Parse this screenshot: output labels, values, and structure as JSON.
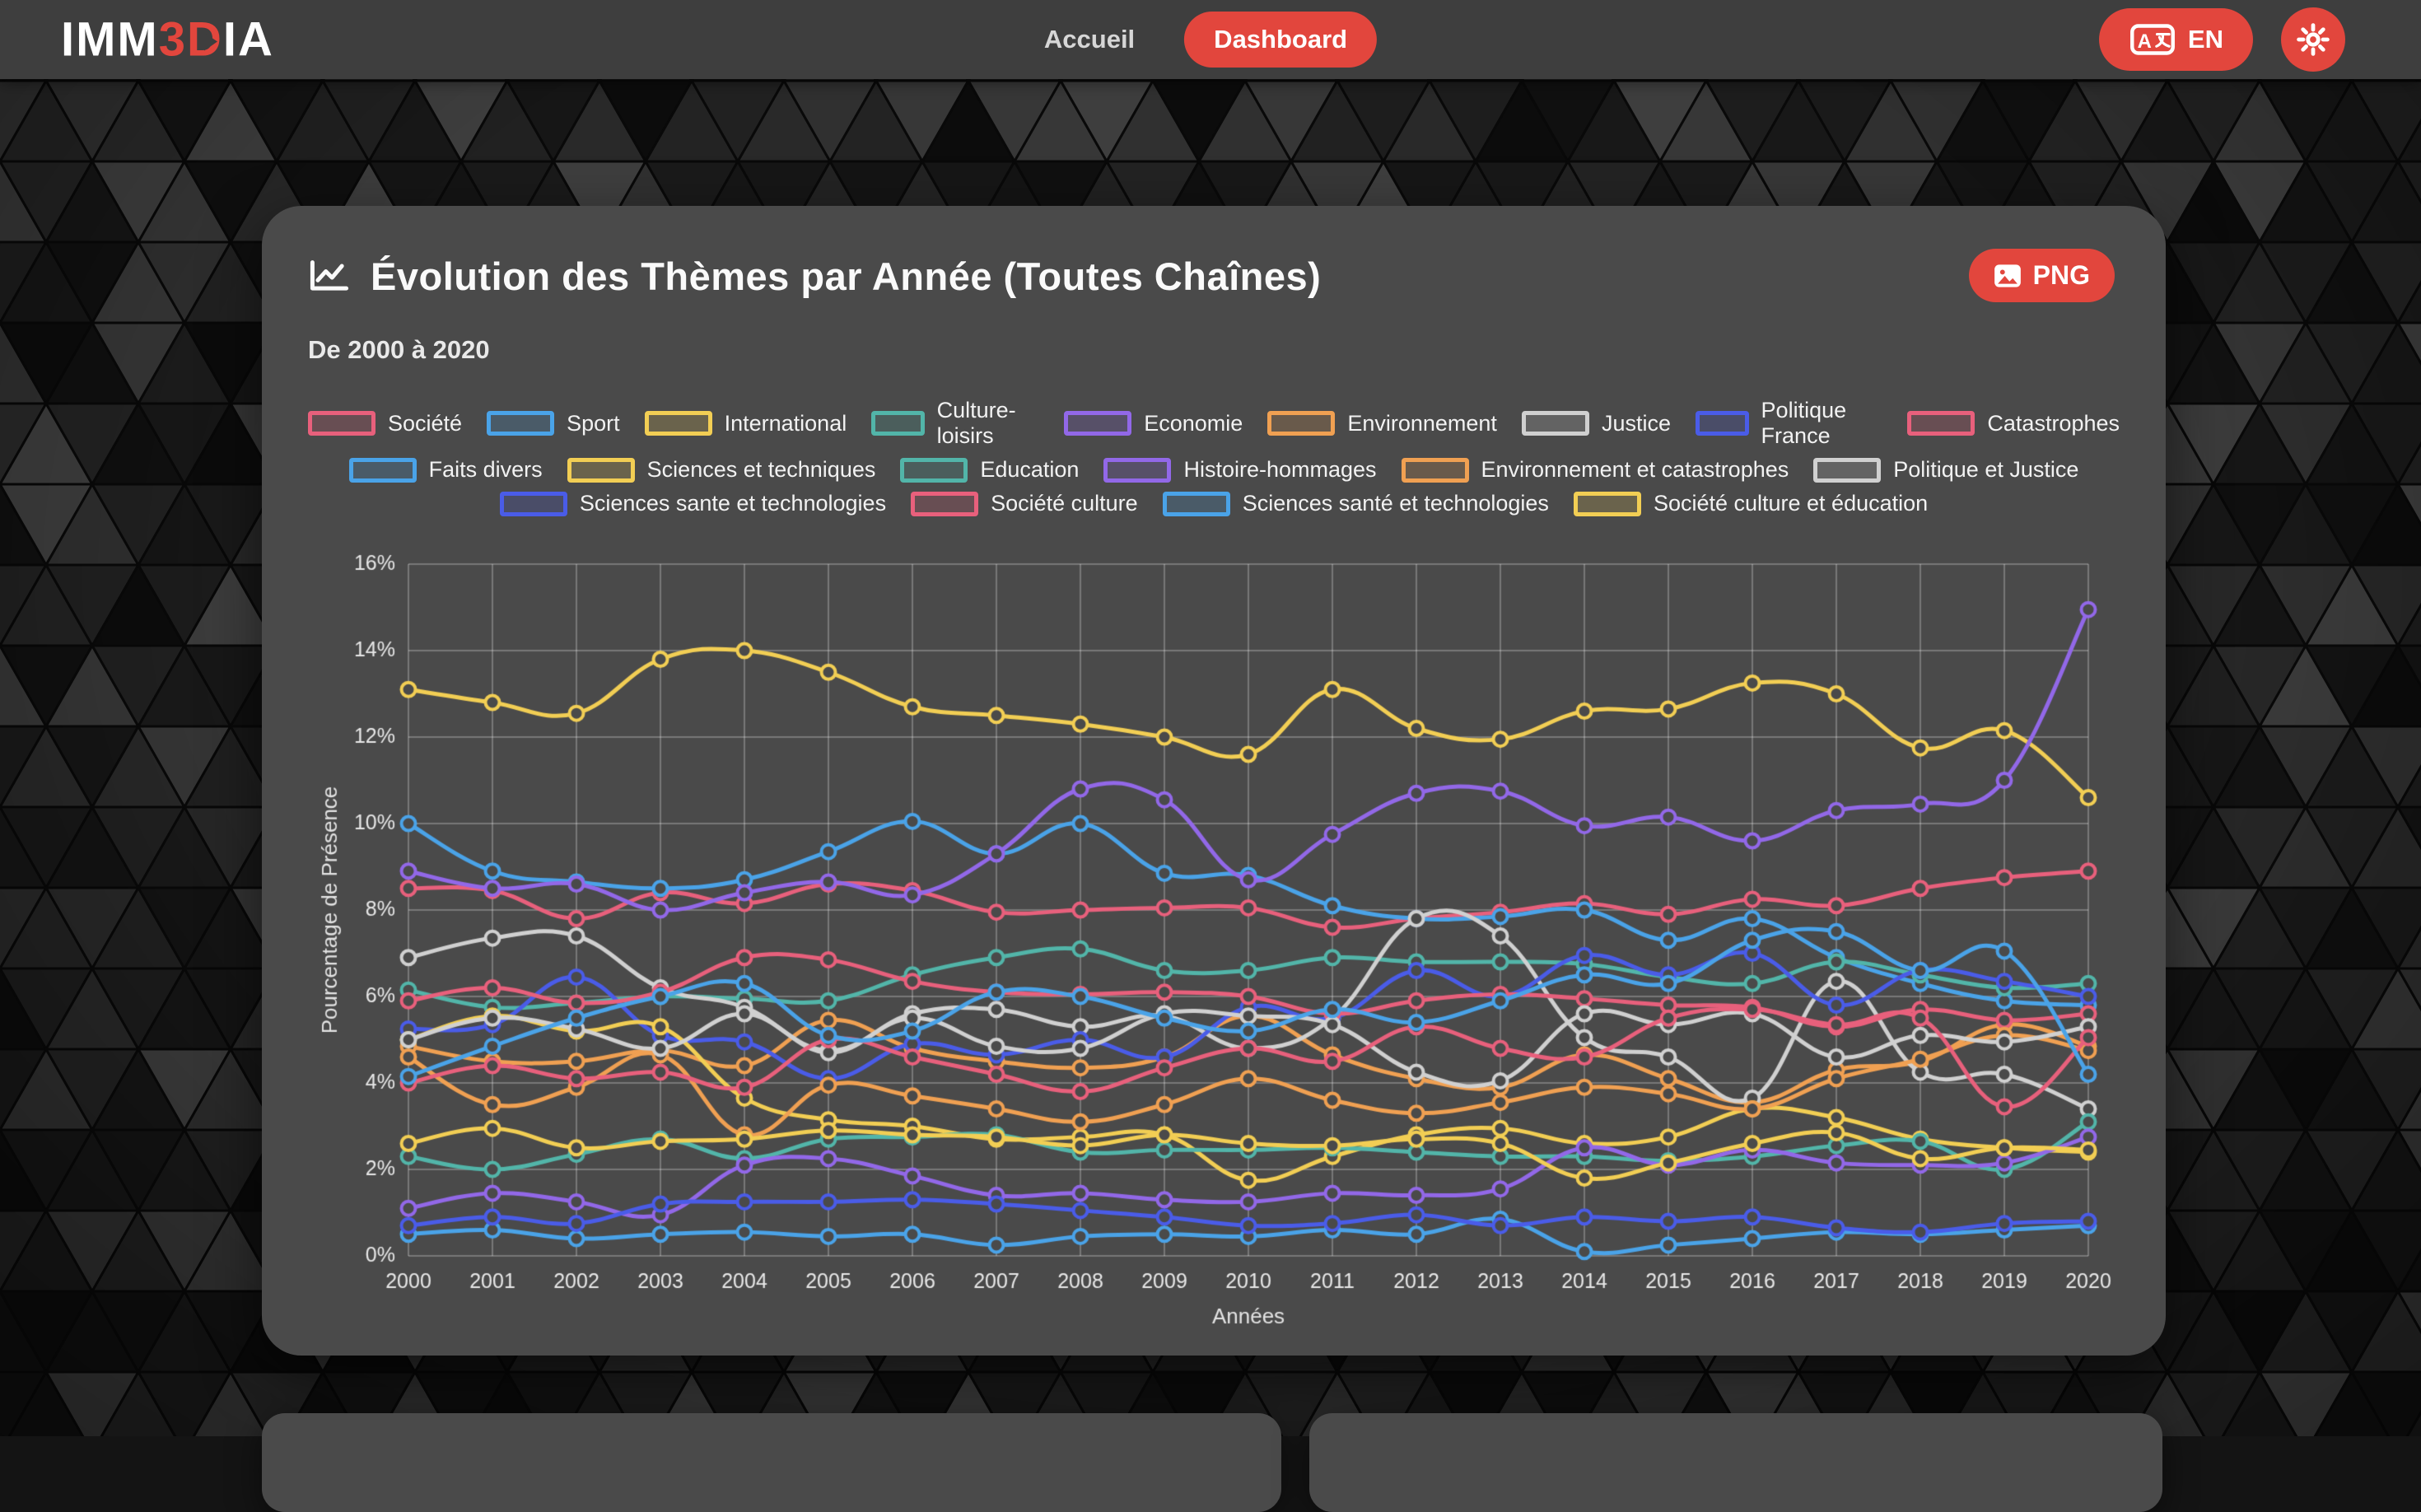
{
  "header": {
    "logo": {
      "prefix": "IMM",
      "accent": "3D",
      "suffix": "IA"
    },
    "nav": [
      {
        "label": "Accueil",
        "active": false
      },
      {
        "label": "Dashboard",
        "active": true
      }
    ],
    "language_button": {
      "label": "EN"
    },
    "accent_color": "#e2463d"
  },
  "card": {
    "title": "Évolution des Thèmes par Année (Toutes Chaînes)",
    "subtitle": "De 2000 à 2020",
    "export_button": {
      "label": "PNG"
    }
  },
  "chart_data": {
    "type": "line",
    "title": "Évolution des Thèmes par Année (Toutes Chaînes)",
    "xlabel": "Années",
    "ylabel": "Pourcentage de Présence",
    "ylim": [
      0,
      16
    ],
    "yticks": [
      "0%",
      "2%",
      "4%",
      "6%",
      "8%",
      "10%",
      "12%",
      "14%",
      "16%"
    ],
    "grid": true,
    "legend_position": "top",
    "legend_rows": [
      9,
      6,
      4
    ],
    "x": [
      2000,
      2001,
      2002,
      2003,
      2004,
      2005,
      2006,
      2007,
      2008,
      2009,
      2010,
      2011,
      2012,
      2013,
      2014,
      2015,
      2016,
      2017,
      2018,
      2019,
      2020
    ],
    "series": [
      {
        "name": "Société",
        "color": "#e8607c",
        "values": [
          8.5,
          8.45,
          7.8,
          8.4,
          8.15,
          8.6,
          8.45,
          7.95,
          8.0,
          8.05,
          8.05,
          7.6,
          7.8,
          7.95,
          8.15,
          7.9,
          8.25,
          8.1,
          8.5,
          8.75,
          8.9
        ]
      },
      {
        "name": "Sport",
        "color": "#4aa3e8",
        "values": [
          10.0,
          8.9,
          8.65,
          8.5,
          8.7,
          9.35,
          10.05,
          9.3,
          10.0,
          8.85,
          8.8,
          8.1,
          7.8,
          7.85,
          8.0,
          7.3,
          7.8,
          6.9,
          6.3,
          5.9,
          5.8
        ]
      },
      {
        "name": "International",
        "color": "#f2ce54",
        "values": [
          13.1,
          12.8,
          12.55,
          13.8,
          14.0,
          13.5,
          12.7,
          12.5,
          12.3,
          12.0,
          11.6,
          13.1,
          12.2,
          11.95,
          12.6,
          12.65,
          13.25,
          13.0,
          11.75,
          12.15,
          10.6
        ]
      },
      {
        "name": "Culture-loisirs",
        "color": "#52b5a9",
        "values": [
          6.15,
          5.75,
          5.85,
          6.0,
          5.95,
          5.9,
          6.5,
          6.9,
          7.1,
          6.6,
          6.6,
          6.9,
          6.8,
          6.8,
          6.75,
          6.45,
          6.3,
          6.8,
          6.5,
          6.2,
          6.3
        ]
      },
      {
        "name": "Economie",
        "color": "#9268e8",
        "values": [
          8.9,
          8.5,
          8.6,
          8.0,
          8.4,
          8.65,
          8.35,
          9.3,
          10.8,
          10.55,
          8.7,
          9.75,
          10.7,
          10.75,
          9.95,
          10.15,
          9.6,
          10.3,
          10.45,
          11.0,
          14.95
        ]
      },
      {
        "name": "Environnement",
        "color": "#f0a052",
        "values": [
          4.85,
          4.5,
          4.5,
          4.75,
          4.4,
          5.45,
          4.8,
          4.5,
          4.35,
          4.6,
          5.55,
          4.65,
          4.1,
          3.9,
          4.65,
          4.1,
          3.55,
          4.3,
          4.5,
          5.35,
          4.85
        ]
      },
      {
        "name": "Justice",
        "color": "#d0d0d0",
        "values": [
          6.9,
          7.35,
          7.4,
          6.2,
          5.75,
          4.75,
          5.6,
          5.7,
          5.3,
          5.55,
          4.8,
          5.5,
          7.8,
          7.4,
          5.05,
          4.6,
          3.65,
          6.35,
          4.25,
          4.2,
          3.4
        ]
      },
      {
        "name": "Politique France",
        "color": "#4a5ce8",
        "values": [
          5.25,
          5.35,
          6.45,
          5.1,
          4.95,
          4.1,
          4.9,
          4.65,
          5.0,
          4.6,
          5.75,
          5.5,
          6.6,
          6.0,
          6.95,
          6.5,
          7.0,
          5.8,
          6.6,
          6.35,
          6.0
        ]
      },
      {
        "name": "Catastrophes",
        "color": "#e8607c",
        "values": [
          5.9,
          6.2,
          5.85,
          6.1,
          6.9,
          6.85,
          6.35,
          6.1,
          6.05,
          6.1,
          6.0,
          5.6,
          5.9,
          6.05,
          5.95,
          5.8,
          5.75,
          5.3,
          5.7,
          5.45,
          5.6
        ]
      },
      {
        "name": "Faits divers",
        "color": "#4aa3e8",
        "values": [
          0.5,
          0.6,
          0.4,
          0.5,
          0.55,
          0.45,
          0.5,
          0.25,
          0.45,
          0.5,
          0.45,
          0.6,
          0.5,
          0.85,
          0.1,
          0.25,
          0.4,
          0.55,
          0.5,
          0.6,
          0.7
        ]
      },
      {
        "name": "Sciences et techniques",
        "color": "#f2ce54",
        "values": [
          5.0,
          5.55,
          5.2,
          5.3,
          3.65,
          3.15,
          3.0,
          2.7,
          2.75,
          2.8,
          1.75,
          2.3,
          2.8,
          2.95,
          2.6,
          2.75,
          3.4,
          3.2,
          2.7,
          2.5,
          2.4
        ]
      },
      {
        "name": "Education",
        "color": "#52b5a9",
        "values": [
          2.3,
          2.0,
          2.35,
          2.7,
          2.25,
          2.7,
          2.75,
          2.8,
          2.4,
          2.45,
          2.45,
          2.5,
          2.4,
          2.3,
          2.3,
          2.2,
          2.3,
          2.55,
          2.65,
          2.0,
          3.1
        ]
      },
      {
        "name": "Histoire-hommages",
        "color": "#9268e8",
        "values": [
          1.1,
          1.45,
          1.25,
          0.95,
          2.1,
          2.25,
          1.85,
          1.4,
          1.45,
          1.3,
          1.25,
          1.45,
          1.4,
          1.55,
          2.5,
          2.1,
          2.45,
          2.15,
          2.1,
          2.15,
          2.75
        ]
      },
      {
        "name": "Environnement et catastrophes",
        "color": "#f0a052",
        "values": [
          4.6,
          3.5,
          3.9,
          4.65,
          2.8,
          3.95,
          3.7,
          3.4,
          3.1,
          3.5,
          4.1,
          3.6,
          3.3,
          3.55,
          3.9,
          3.75,
          3.4,
          4.1,
          4.55,
          5.1,
          4.75
        ]
      },
      {
        "name": "Politique et Justice",
        "color": "#d0d0d0",
        "values": [
          5.0,
          5.5,
          5.25,
          4.8,
          5.6,
          4.7,
          5.5,
          4.85,
          4.8,
          5.6,
          5.55,
          5.35,
          4.25,
          4.05,
          5.6,
          5.35,
          5.6,
          4.6,
          5.1,
          4.95,
          5.3
        ]
      },
      {
        "name": "Sciences sante et technologies",
        "color": "#4a5ce8",
        "values": [
          0.7,
          0.9,
          0.75,
          1.2,
          1.25,
          1.25,
          1.3,
          1.2,
          1.05,
          0.9,
          0.7,
          0.75,
          0.95,
          0.7,
          0.9,
          0.8,
          0.9,
          0.65,
          0.55,
          0.75,
          0.8
        ]
      },
      {
        "name": "Société culture",
        "color": "#e8607c",
        "values": [
          4.0,
          4.4,
          4.1,
          4.25,
          3.9,
          5.0,
          4.6,
          4.2,
          3.8,
          4.35,
          4.8,
          4.5,
          5.3,
          4.8,
          4.6,
          5.5,
          5.7,
          5.35,
          5.5,
          3.45,
          5.05
        ]
      },
      {
        "name": "Sciences santé et technologies",
        "color": "#4aa3e8",
        "values": [
          4.15,
          4.85,
          5.5,
          6.0,
          6.3,
          5.1,
          5.2,
          6.1,
          6.0,
          5.5,
          5.2,
          5.7,
          5.4,
          5.9,
          6.5,
          6.3,
          7.3,
          7.5,
          6.6,
          7.05,
          4.2
        ]
      },
      {
        "name": "Société culture et éducation",
        "color": "#f2ce54",
        "values": [
          2.6,
          2.95,
          2.5,
          2.65,
          2.7,
          2.9,
          2.8,
          2.75,
          2.55,
          2.8,
          2.6,
          2.55,
          2.7,
          2.6,
          1.8,
          2.15,
          2.6,
          2.85,
          2.25,
          2.5,
          2.45
        ]
      }
    ]
  }
}
